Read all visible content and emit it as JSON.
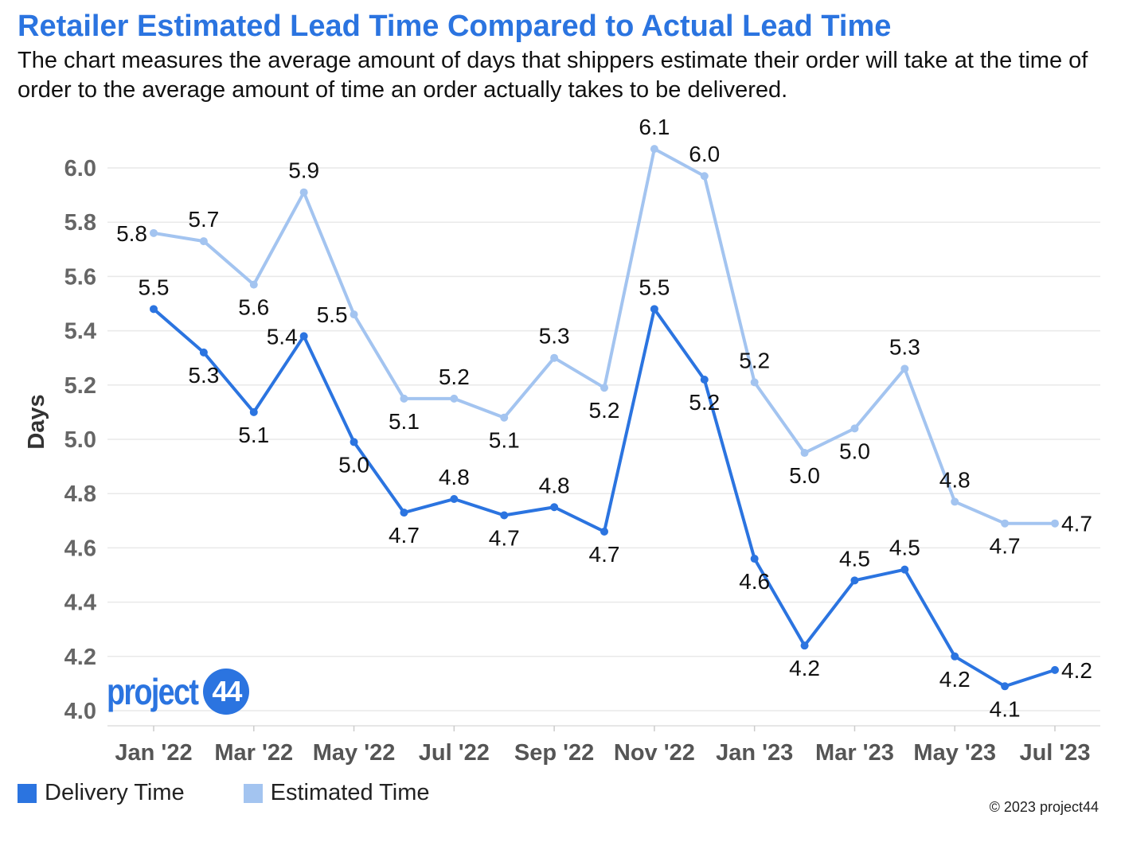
{
  "header": {
    "title": "Retailer Estimated Lead Time Compared to Actual Lead Time",
    "subtitle": "The chart measures the average amount of days that shippers estimate their order will take at the time of order to the average amount of time an order actually takes to be delivered."
  },
  "logo": {
    "word": "project",
    "badge": "44"
  },
  "footer": {
    "copyright": "© 2023 project44"
  },
  "colors": {
    "delivery": "#2b74e0",
    "estimated": "#a3c4f0",
    "title": "#2b74e0"
  },
  "chart_data": {
    "type": "line",
    "title": "Retailer Estimated Lead Time Compared to Actual Lead Time",
    "xlabel": "",
    "ylabel": "Days",
    "ylim": [
      4.0,
      6.1
    ],
    "yticks": [
      "4.0",
      "4.2",
      "4.4",
      "4.6",
      "4.8",
      "5.0",
      "5.2",
      "5.4",
      "5.6",
      "5.8",
      "6.0"
    ],
    "ytick_values": [
      4.0,
      4.2,
      4.4,
      4.6,
      4.8,
      5.0,
      5.2,
      5.4,
      5.6,
      5.8,
      6.0
    ],
    "grid": true,
    "legend_position": "bottom-left",
    "categories": [
      "Jan '22",
      "Feb '22",
      "Mar '22",
      "Apr '22",
      "May '22",
      "Jun '22",
      "Jul '22",
      "Aug '22",
      "Sep '22",
      "Oct '22",
      "Nov '22",
      "Dec '22",
      "Jan '23",
      "Feb '23",
      "Mar '23",
      "Apr '23",
      "May '23",
      "Jun '23",
      "Jul '23"
    ],
    "xtick_labels": [
      "Jan '22",
      "Mar '22",
      "May '22",
      "Jul '22",
      "Sep '22",
      "Nov '22",
      "Jan '23",
      "Mar '23",
      "May '23",
      "Jul '23"
    ],
    "series": [
      {
        "name": "Delivery Time",
        "color": "#2b74e0",
        "values": [
          5.48,
          5.32,
          5.1,
          5.38,
          4.99,
          4.73,
          4.78,
          4.72,
          4.75,
          4.66,
          5.48,
          5.22,
          4.56,
          4.24,
          4.48,
          4.52,
          4.2,
          4.09,
          4.15
        ],
        "labels": [
          "5.5",
          "5.3",
          "5.1",
          "5.4",
          "5.0",
          "4.7",
          "4.8",
          "4.7",
          "4.8",
          "4.7",
          "5.5",
          "5.2",
          "4.6",
          "4.2",
          "4.5",
          "4.5",
          "4.2",
          "4.1",
          "4.2"
        ],
        "label_pos": [
          "above",
          "below",
          "below",
          "left",
          "below",
          "below",
          "above",
          "below",
          "above",
          "below",
          "above",
          "below",
          "below",
          "below",
          "above",
          "above",
          "below",
          "below",
          "right"
        ]
      },
      {
        "name": "Estimated Time",
        "color": "#a3c4f0",
        "values": [
          5.76,
          5.73,
          5.57,
          5.91,
          5.46,
          5.15,
          5.15,
          5.08,
          5.3,
          5.19,
          6.07,
          5.97,
          5.21,
          4.95,
          5.04,
          5.26,
          4.77,
          4.69,
          4.69
        ],
        "labels": [
          "5.8",
          "5.7",
          "5.6",
          "5.9",
          "5.5",
          "5.1",
          "5.2",
          "5.1",
          "5.3",
          "5.2",
          "6.1",
          "6.0",
          "5.2",
          "5.0",
          "5.0",
          "5.3",
          "4.8",
          "4.7",
          "4.7"
        ],
        "label_pos": [
          "left",
          "above",
          "below",
          "above",
          "left",
          "below",
          "above",
          "below",
          "above",
          "below",
          "above",
          "above",
          "above",
          "below",
          "below",
          "above",
          "above",
          "below",
          "right"
        ]
      }
    ]
  }
}
